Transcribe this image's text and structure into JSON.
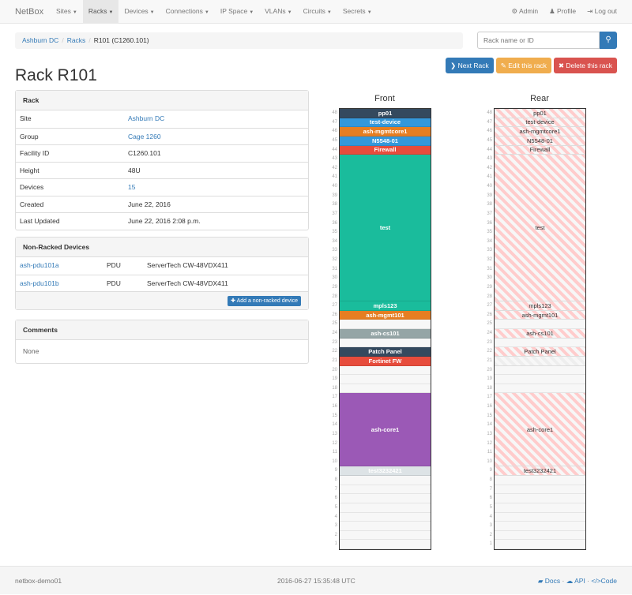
{
  "navbar": {
    "brand": "NetBox",
    "items": [
      {
        "label": "Sites"
      },
      {
        "label": "Racks",
        "active": true
      },
      {
        "label": "Devices"
      },
      {
        "label": "Connections"
      },
      {
        "label": "IP Space"
      },
      {
        "label": "VLANs"
      },
      {
        "label": "Circuits"
      },
      {
        "label": "Secrets"
      }
    ],
    "admin": "Admin",
    "profile": "Profile",
    "logout": "Log out"
  },
  "breadcrumb": [
    "Ashburn DC",
    "Racks",
    "R101 (C1260.101)"
  ],
  "search": {
    "placeholder": "Rack name or ID",
    "icon": "search-icon"
  },
  "actions": {
    "next": "Next Rack",
    "edit": "Edit this rack",
    "delete": "Delete this rack"
  },
  "title": "Rack R101",
  "rack_panel": {
    "heading": "Rack",
    "rows": [
      {
        "k": "Site",
        "v": "Ashburn DC",
        "link": true
      },
      {
        "k": "Group",
        "v": "Cage 1260",
        "link": true
      },
      {
        "k": "Facility ID",
        "v": "C1260.101"
      },
      {
        "k": "Height",
        "v": "48U"
      },
      {
        "k": "Devices",
        "v": "15",
        "link": true
      },
      {
        "k": "Created",
        "v": "June 22, 2016"
      },
      {
        "k": "Last Updated",
        "v": "June 22, 2016 2:08 p.m."
      }
    ]
  },
  "nonracked": {
    "heading": "Non-Racked Devices",
    "rows": [
      {
        "name": "ash-pdu101a",
        "role": "PDU",
        "type": "ServerTech CW-48VDX411"
      },
      {
        "name": "ash-pdu101b",
        "role": "PDU",
        "type": "ServerTech CW-48VDX411"
      }
    ],
    "add": "Add a non-racked device"
  },
  "comments": {
    "heading": "Comments",
    "body": "None"
  },
  "rack": {
    "height": 48,
    "front_label": "Front",
    "rear_label": "Rear",
    "devices": [
      {
        "name": "pp01",
        "u": 48,
        "h": 1,
        "color": "#34495e"
      },
      {
        "name": "test-device",
        "u": 47,
        "h": 1,
        "color": "#3498db"
      },
      {
        "name": "ash-mgmtcore1",
        "u": 46,
        "h": 1,
        "color": "#e67e22"
      },
      {
        "name": "N5548-01",
        "u": 45,
        "h": 1,
        "color": "#3498db"
      },
      {
        "name": "Firewall",
        "u": 44,
        "h": 1,
        "color": "#e74c3c"
      },
      {
        "name": "test",
        "u": 28,
        "h": 16,
        "color": "#1abc9c"
      },
      {
        "name": "mpls123",
        "u": 27,
        "h": 1,
        "color": "#1abc9c"
      },
      {
        "name": "ash-mgmt101",
        "u": 26,
        "h": 1,
        "color": "#e67e22"
      },
      {
        "name": "ash-cs101",
        "u": 24,
        "h": 1,
        "color": "#95a5a6"
      },
      {
        "name": "Patch Panel",
        "u": 22,
        "h": 1,
        "color": "#34495e"
      },
      {
        "name": "Fortinet FW",
        "u": 21,
        "h": 1,
        "color": "#e74c3c",
        "front_only": true
      },
      {
        "name": "ash-core1",
        "u": 10,
        "h": 8,
        "color": "#9b59b6"
      },
      {
        "name": "test3232421",
        "u": 9,
        "h": 1,
        "color": "#dde3e6"
      }
    ]
  },
  "footer": {
    "host": "netbox-demo01",
    "time": "2016-06-27 15:35:48 UTC",
    "docs": "Docs",
    "api": "API",
    "code": "Code"
  }
}
